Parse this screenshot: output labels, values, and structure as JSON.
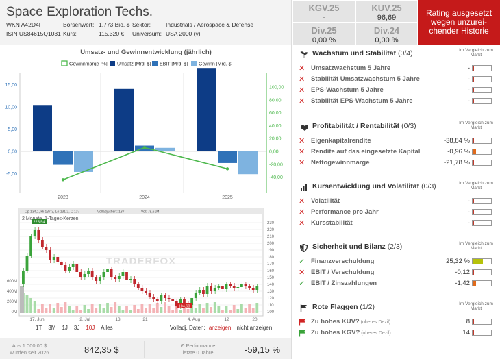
{
  "company": "Space Exploration Techs.",
  "meta": {
    "wkn_label": "WKN A42D4F",
    "isin_label": "ISIN US84615Q1031",
    "boersenwert_key": "Börsenwert:",
    "boersenwert_val": "1,773 Bio. $",
    "kurs_key": "Kurs:",
    "kurs_val": "115,320 €",
    "sektor_key": "Sektor:",
    "sektor_val": "Industrials / Aerospace & Defense",
    "universum_key": "Universum:",
    "universum_val": "USA 2000 (v)"
  },
  "kpis": [
    {
      "title": "KGV.25",
      "value": "-"
    },
    {
      "title": "KUV.25",
      "value": "96,69"
    },
    {
      "title": "Div.25",
      "value": "0,00 %"
    },
    {
      "title": "Div.24",
      "value": "0,00 %"
    }
  ],
  "rating": "Rating ausgesetzt wegen unzurei-chender Historie",
  "chart1": {
    "title": "Umsatz- und Gewinnentwicklung (jährlich)",
    "legend": [
      "Gewinnmarge [%]",
      "Umsatz [Mrd. $]",
      "EBIT [Mrd. $]",
      "Gewinn [Mrd. $]"
    ],
    "left_ticks": [
      "15,00",
      "10,00",
      "5,00",
      "0,00",
      "-5,00"
    ],
    "right_ticks": [
      "100,00",
      "80,00",
      "60,00",
      "40,00",
      "20,00",
      "0,00",
      "-20,00",
      "-40,00"
    ],
    "years": [
      "2023",
      "2024",
      "2025"
    ]
  },
  "chart_data": {
    "type": "bar",
    "categories": [
      "2023",
      "2024",
      "2025"
    ],
    "series": [
      {
        "name": "Umsatz [Mrd. $]",
        "values": [
          10.4,
          14.0,
          18.7
        ],
        "color": "#0d3c86"
      },
      {
        "name": "EBIT [Mrd. $]",
        "values": [
          -3.0,
          1.3,
          -2.6
        ],
        "color": "#2f72b8"
      },
      {
        "name": "Gewinn [Mrd. $]",
        "values": [
          -4.6,
          0.8,
          -5.1
        ],
        "color": "#7eb3e0"
      },
      {
        "name": "Gewinnmarge [%]",
        "values": [
          -44,
          6,
          -27
        ],
        "color": "#4cb84c",
        "axis": "right"
      }
    ],
    "ylim": [
      -7,
      18
    ],
    "y2lim": [
      -45,
      105
    ]
  },
  "chart2": {
    "info": "Op 134,1, Hi 137,3, Lo 131,2, C 137",
    "vol_legend": "Volladjustiert: 137",
    "vol2_legend": "Vol: 78,61M",
    "period_label": "2 Monate, 1-Tages-Kerzen",
    "watermark": "TRADERFOX",
    "high_tag": "225,54",
    "low_tag": "104,60",
    "price_ticks": [
      "230",
      "220",
      "210",
      "200",
      "190",
      "180",
      "170",
      "160",
      "150",
      "140",
      "130",
      "120",
      "110",
      "100"
    ],
    "vol_ticks": [
      "600M",
      "400M",
      "200M",
      "0M"
    ],
    "dates": [
      "17. Jun",
      "2. Jul",
      "13",
      "21",
      "4. Aug",
      "12",
      "20"
    ],
    "ranges": [
      "1T",
      "3M",
      "1J",
      "3J",
      "10J",
      "Alles"
    ],
    "active_range": "10J",
    "volladj_label": "Volladj. Daten:",
    "show_label": "anzeigen",
    "hide_label": "nicht anzeigen"
  },
  "bottom": {
    "invest_line1": "Aus 1.000,00 $",
    "invest_line2": "wurden seit 2026",
    "invest_value": "842,35 $",
    "perf_line1": "Ø Performance",
    "perf_line2": "letzte 0 Jahre",
    "perf_value": "-59,15 %"
  },
  "comparison_label": "Im Vergleich zum Markt",
  "sections": [
    {
      "title": "Wachstum und Stabilität",
      "count": "(0/4)",
      "icon": "growth-icon",
      "items": [
        {
          "label": "Umsatzwachstum 5 Jahre",
          "value": "-",
          "ok": false,
          "fill": 0.08,
          "color": "#c0392b"
        },
        {
          "label": "Stabilität Umsatzwachstum 5 Jahre",
          "value": "-",
          "ok": false,
          "fill": 0.08,
          "color": "#c0392b"
        },
        {
          "label": "EPS-Wachstum 5 Jahre",
          "value": "-",
          "ok": false,
          "fill": 0.08,
          "color": "#c0392b"
        },
        {
          "label": "Stabilität EPS-Wachstum 5 Jahre",
          "value": "-",
          "ok": false,
          "fill": 0.08,
          "color": "#c0392b"
        }
      ]
    },
    {
      "title": "Profitabilität / Rentabilität",
      "count": "(0/3)",
      "icon": "handshake-icon",
      "items": [
        {
          "label": "Eigenkapitalrendite",
          "value": "-38,84 %",
          "ok": false,
          "fill": 0.08,
          "color": "#c0392b"
        },
        {
          "label": "Rendite auf das eingesetzte Kapital",
          "value": "-0,96 %",
          "ok": false,
          "fill": 0.2,
          "color": "#e06a1b"
        },
        {
          "label": "Nettogewinnmarge",
          "value": "-21,78 %",
          "ok": false,
          "fill": 0.08,
          "color": "#c0392b"
        }
      ]
    },
    {
      "title": "Kursentwicklung und Volatilität",
      "count": "(0/3)",
      "icon": "chart-icon",
      "items": [
        {
          "label": "Volatilität",
          "value": "-",
          "ok": false,
          "fill": 0.08,
          "color": "#c0392b"
        },
        {
          "label": "Performance pro Jahr",
          "value": "-",
          "ok": false,
          "fill": 0.08,
          "color": "#c0392b"
        },
        {
          "label": "Kursstabilität",
          "value": "-",
          "ok": false,
          "fill": 0.08,
          "color": "#c0392b"
        }
      ]
    },
    {
      "title": "Sicherheit und Bilanz",
      "count": "(2/3)",
      "icon": "shield-icon",
      "items": [
        {
          "label": "Finanzverschuldung",
          "value": "25,32 %",
          "ok": true,
          "fill": 0.55,
          "color": "#b6c20a"
        },
        {
          "label": "EBIT / Verschuldung",
          "value": "-0,12",
          "ok": false,
          "fill": 0.08,
          "color": "#c0392b"
        },
        {
          "label": "EBIT / Zinszahlungen",
          "value": "-1,42",
          "ok": true,
          "fill": 0.2,
          "color": "#e06a1b"
        }
      ]
    },
    {
      "title": "Rote Flaggen",
      "count": "(1/2)",
      "icon": "flag-icon",
      "items": [
        {
          "label": "Zu hohes KUV?",
          "sub": "(oberes Dezil)",
          "value": "8",
          "flag": "red",
          "fill": 0.08,
          "color": "#c0392b"
        },
        {
          "label": "Zu hohes KGV?",
          "sub": "(oberes Dezil)",
          "value": "14",
          "flag": "green",
          "fill": 0.08,
          "color": "#c0392b"
        }
      ]
    }
  ]
}
